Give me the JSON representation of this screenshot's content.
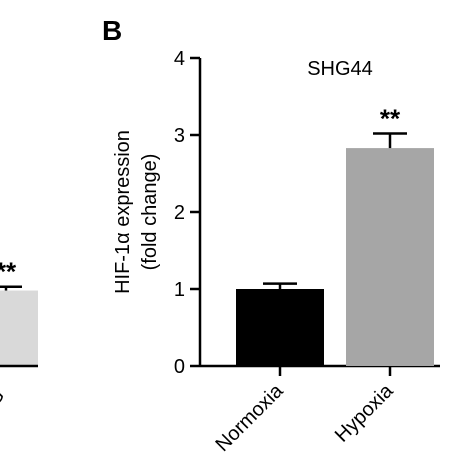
{
  "chart_data": [
    {
      "type": "bar",
      "partial": true,
      "categories": [
        "G"
      ],
      "values": [
        0.98
      ],
      "errors": [
        0.05
      ],
      "significance": [
        "**"
      ],
      "colors": [
        "#d9d9d9"
      ]
    },
    {
      "type": "bar",
      "panel_label": "B",
      "title": "SHG44",
      "ylabel_line1": "HIF-1α expression",
      "ylabel_line2": "(fold change)",
      "categories": [
        "Normoxia",
        "Hypoxia"
      ],
      "values": [
        1.0,
        2.83
      ],
      "errors": [
        0.07,
        0.19
      ],
      "significance": [
        "",
        "**"
      ],
      "colors": [
        "#000000",
        "#a6a6a6"
      ],
      "ylim": [
        0,
        4
      ],
      "yticks": [
        "0",
        "1",
        "2",
        "3",
        "4"
      ],
      "grid": false
    }
  ]
}
